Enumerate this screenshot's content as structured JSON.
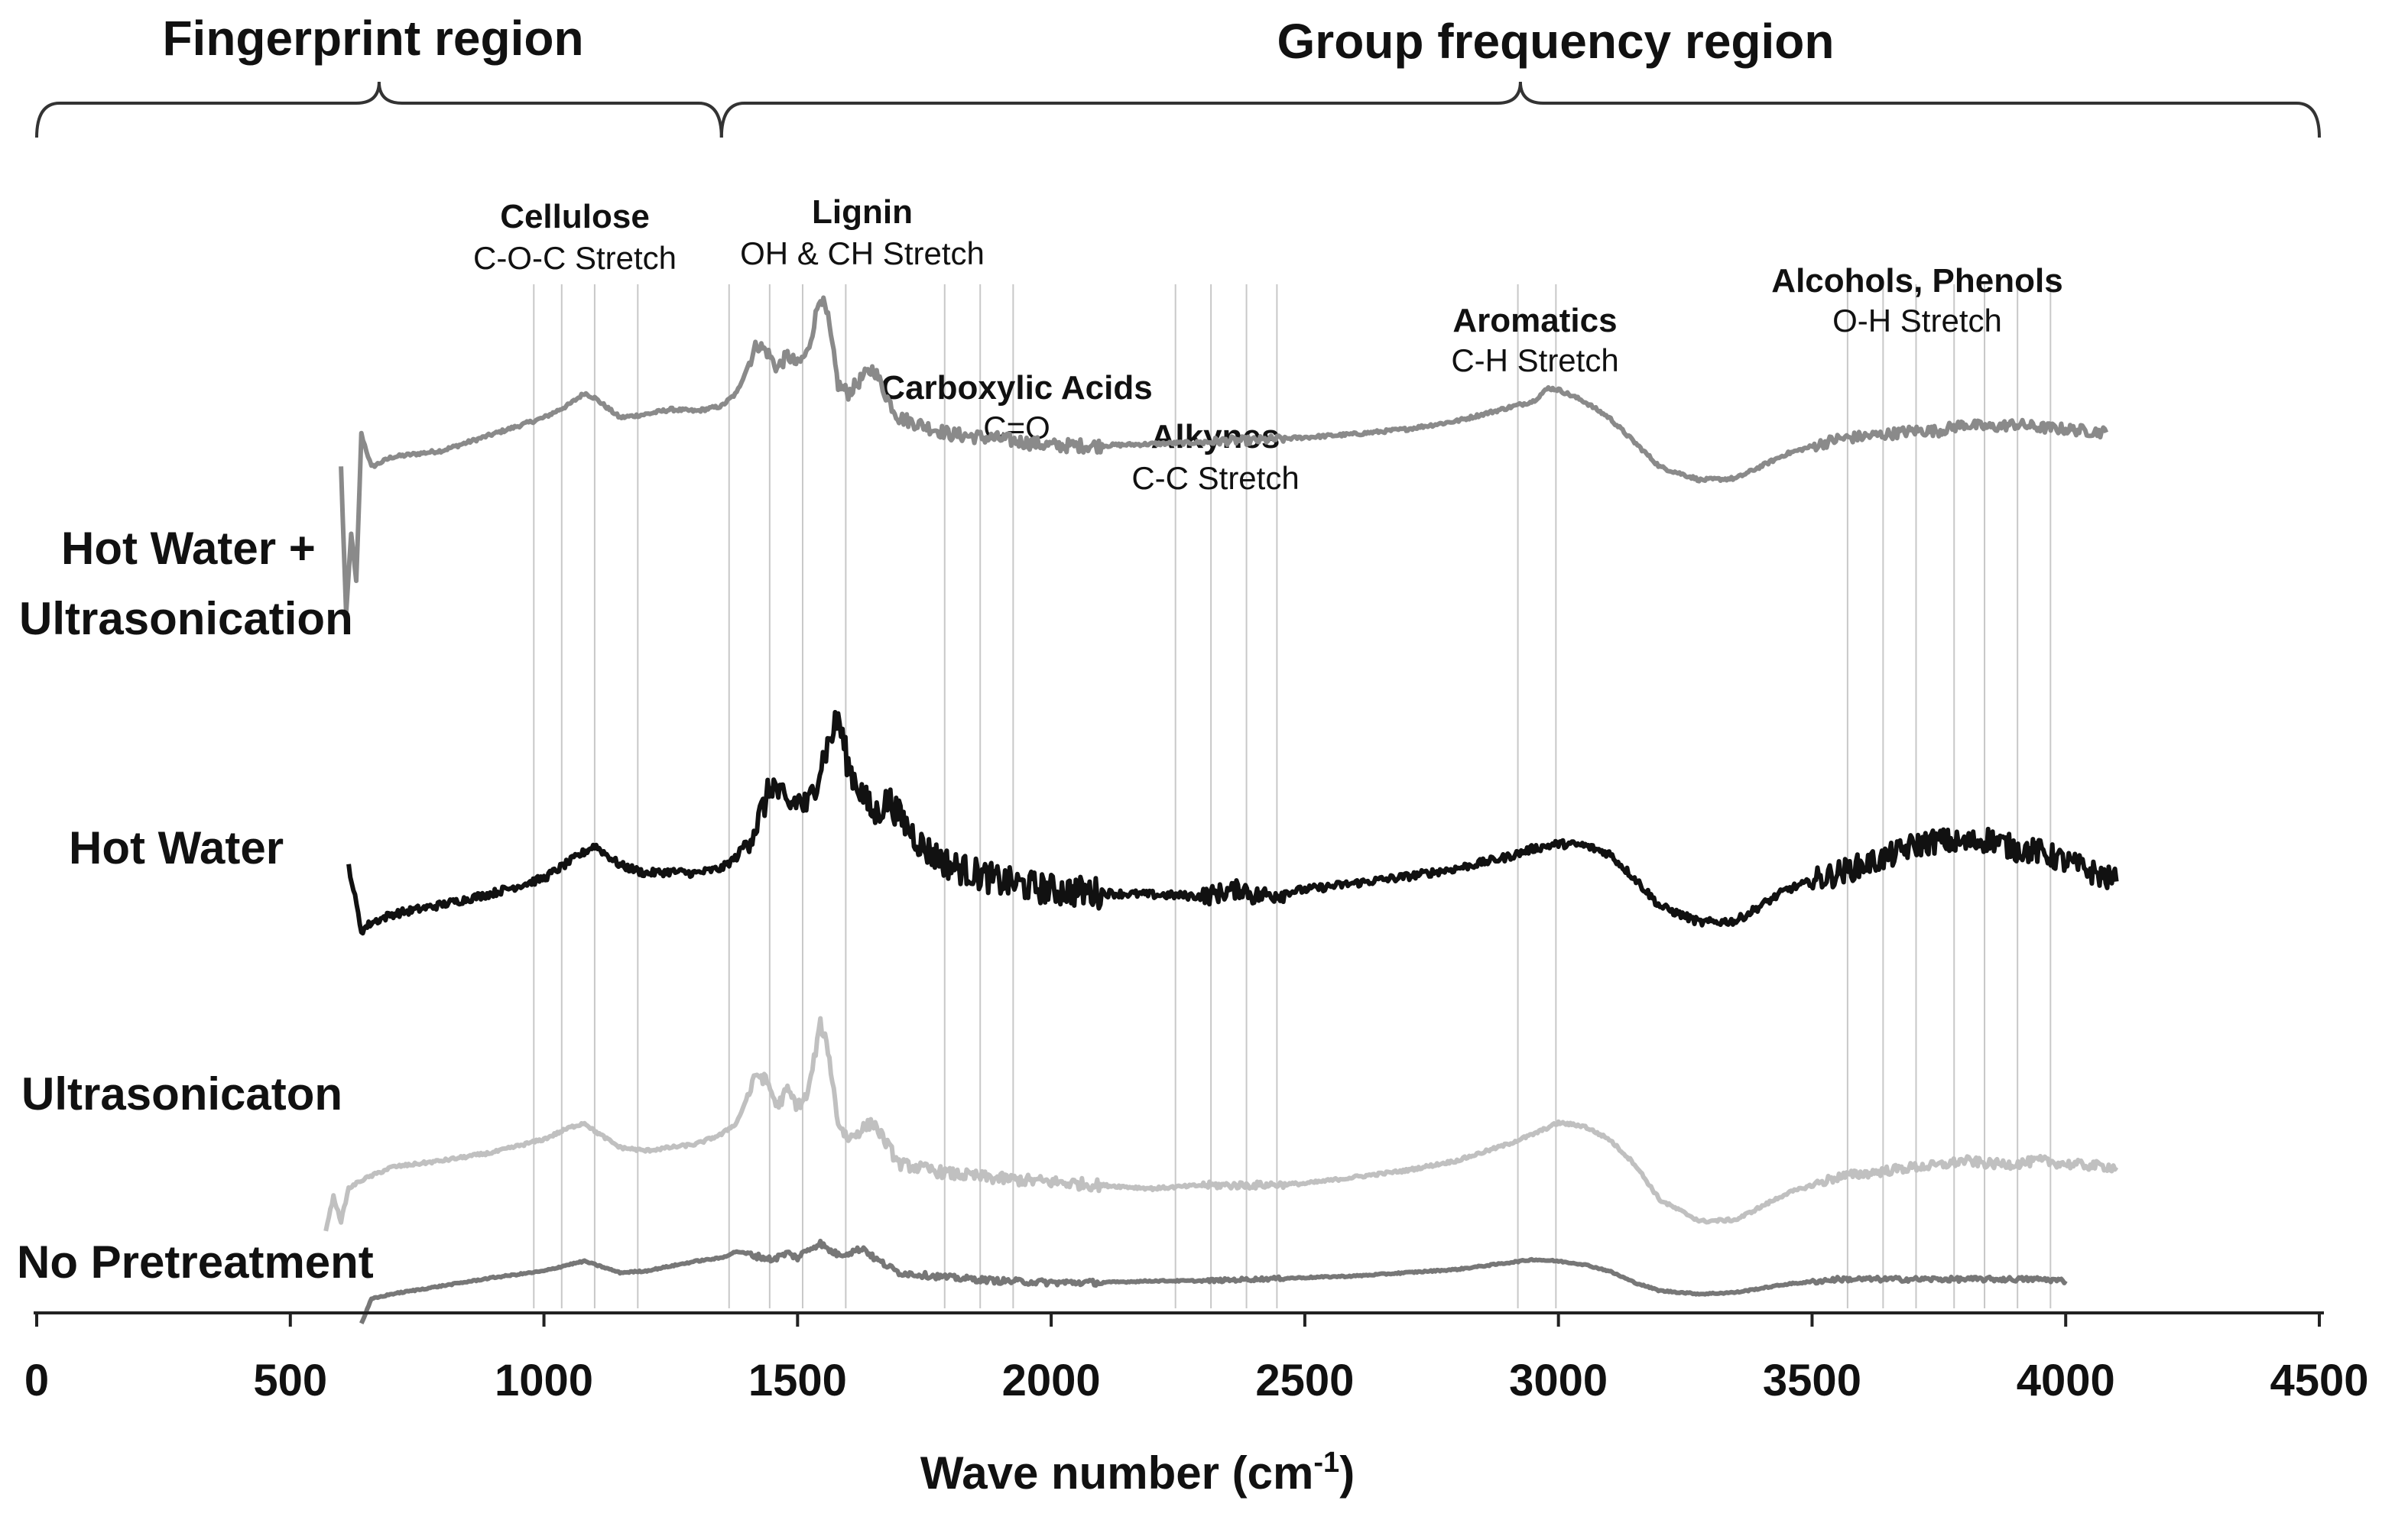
{
  "chart_data": {
    "type": "line",
    "title": "",
    "xlabel": "Wave number (cm-1)",
    "xlabel_base": "Wave number (cm",
    "xlabel_sup": "-1",
    "xlabel_close": ")",
    "xlim": [
      0,
      4500
    ],
    "xticks": [
      "0",
      "500",
      "1000",
      "1500",
      "2000",
      "2500",
      "3000",
      "3500",
      "4000",
      "4500"
    ],
    "regions": [
      {
        "label": "Fingerprint region",
        "range": [
          0,
          1350
        ]
      },
      {
        "label": "Group frequency region",
        "range": [
          1350,
          4500
        ]
      }
    ],
    "annotations": [
      {
        "title": "Cellulose",
        "subtitle": "C-O-C Stretch",
        "lines": [
          980,
          1035,
          1100,
          1185
        ]
      },
      {
        "title": "Lignin",
        "subtitle": "OH & CH Stretch",
        "lines": [
          1365,
          1445,
          1510,
          1595
        ]
      },
      {
        "title": "Carboxylic Acids",
        "subtitle": "",
        "lines": []
      },
      {
        "title": "",
        "subtitle": "C=O",
        "lines": [
          1790,
          1860,
          1925
        ]
      },
      {
        "title": "Alkynes",
        "subtitle": "C-C Stretch",
        "lines": [
          2245,
          2315,
          2385,
          2445
        ]
      },
      {
        "title": "Aromatics",
        "subtitle": "C-H Stretch",
        "lines": [
          2920,
          2995
        ]
      },
      {
        "title": "Alcohols, Phenols",
        "subtitle": "O-H Stretch",
        "lines": [
          3570,
          3640,
          3705,
          3780,
          3840,
          3905,
          3970
        ]
      }
    ],
    "series": [
      {
        "name": "Hot Water + Ultrasonication",
        "label_line1": "Hot Water +",
        "label_line2": "Ultrasonication",
        "color": "#8a8a8a",
        "noise": 0.7,
        "points": [
          [
            600,
            0.6
          ],
          [
            610,
            -0.3
          ],
          [
            620,
            0.2
          ],
          [
            630,
            -0.1
          ],
          [
            640,
            0.8
          ],
          [
            650,
            0.7
          ],
          [
            660,
            0.6
          ],
          [
            700,
            0.66
          ],
          [
            800,
            0.7
          ],
          [
            900,
            0.8
          ],
          [
            1000,
            0.9
          ],
          [
            1050,
            0.98
          ],
          [
            1080,
            1.05
          ],
          [
            1100,
            1.02
          ],
          [
            1150,
            0.9
          ],
          [
            1200,
            0.92
          ],
          [
            1250,
            0.95
          ],
          [
            1300,
            0.94
          ],
          [
            1350,
            0.97
          ],
          [
            1380,
            1.05
          ],
          [
            1420,
            1.35
          ],
          [
            1440,
            1.3
          ],
          [
            1460,
            1.2
          ],
          [
            1480,
            1.28
          ],
          [
            1500,
            1.22
          ],
          [
            1520,
            1.3
          ],
          [
            1545,
            1.65
          ],
          [
            1560,
            1.5
          ],
          [
            1580,
            1.1
          ],
          [
            1600,
            1.05
          ],
          [
            1630,
            1.15
          ],
          [
            1650,
            1.2
          ],
          [
            1680,
            1.0
          ],
          [
            1700,
            0.9
          ],
          [
            1800,
            0.8
          ],
          [
            1900,
            0.77
          ],
          [
            2000,
            0.73
          ],
          [
            2100,
            0.73
          ],
          [
            2200,
            0.74
          ],
          [
            2300,
            0.75
          ],
          [
            2350,
            0.76
          ],
          [
            2400,
            0.76
          ],
          [
            2500,
            0.78
          ],
          [
            2600,
            0.8
          ],
          [
            2700,
            0.83
          ],
          [
            2800,
            0.88
          ],
          [
            2900,
            0.96
          ],
          [
            2950,
            1.0
          ],
          [
            2980,
            1.08
          ],
          [
            3000,
            1.07
          ],
          [
            3050,
            1.0
          ],
          [
            3100,
            0.9
          ],
          [
            3150,
            0.75
          ],
          [
            3200,
            0.6
          ],
          [
            3280,
            0.52
          ],
          [
            3350,
            0.53
          ],
          [
            3450,
            0.68
          ],
          [
            3550,
            0.77
          ],
          [
            3650,
            0.8
          ],
          [
            3700,
            0.82
          ],
          [
            3750,
            0.82
          ],
          [
            3800,
            0.86
          ],
          [
            3850,
            0.84
          ],
          [
            3900,
            0.86
          ],
          [
            3950,
            0.84
          ],
          [
            4000,
            0.83
          ],
          [
            4080,
            0.81
          ]
        ]
      },
      {
        "name": "Hot Water",
        "label_line1": "Hot Water",
        "label_line2": "",
        "color": "#111111",
        "noise": 1.6,
        "points": [
          [
            615,
            0.2
          ],
          [
            640,
            -0.2
          ],
          [
            660,
            -0.15
          ],
          [
            700,
            -0.1
          ],
          [
            800,
            -0.04
          ],
          [
            900,
            0.03
          ],
          [
            1000,
            0.12
          ],
          [
            1050,
            0.22
          ],
          [
            1100,
            0.32
          ],
          [
            1150,
            0.2
          ],
          [
            1200,
            0.15
          ],
          [
            1250,
            0.16
          ],
          [
            1300,
            0.15
          ],
          [
            1350,
            0.18
          ],
          [
            1380,
            0.25
          ],
          [
            1420,
            0.45
          ],
          [
            1450,
            0.7
          ],
          [
            1480,
            0.55
          ],
          [
            1500,
            0.6
          ],
          [
            1520,
            0.55
          ],
          [
            1550,
            0.85
          ],
          [
            1580,
            1.1
          ],
          [
            1600,
            0.8
          ],
          [
            1650,
            0.5
          ],
          [
            1680,
            0.6
          ],
          [
            1700,
            0.5
          ],
          [
            1750,
            0.3
          ],
          [
            1800,
            0.2
          ],
          [
            1900,
            0.1
          ],
          [
            2000,
            0.05
          ],
          [
            2100,
            0.03
          ],
          [
            2200,
            0.02
          ],
          [
            2300,
            0.01
          ],
          [
            2380,
            0.06
          ],
          [
            2400,
            0.01
          ],
          [
            2500,
            0.05
          ],
          [
            2600,
            0.09
          ],
          [
            2700,
            0.13
          ],
          [
            2800,
            0.18
          ],
          [
            2900,
            0.25
          ],
          [
            2950,
            0.3
          ],
          [
            3000,
            0.33
          ],
          [
            3050,
            0.32
          ],
          [
            3100,
            0.27
          ],
          [
            3150,
            0.12
          ],
          [
            3200,
            -0.05
          ],
          [
            3280,
            -0.15
          ],
          [
            3350,
            -0.14
          ],
          [
            3450,
            0.05
          ],
          [
            3550,
            0.15
          ],
          [
            3650,
            0.25
          ],
          [
            3700,
            0.32
          ],
          [
            3750,
            0.35
          ],
          [
            3800,
            0.33
          ],
          [
            3850,
            0.36
          ],
          [
            3900,
            0.3
          ],
          [
            3950,
            0.28
          ],
          [
            4000,
            0.22
          ],
          [
            4100,
            0.1
          ]
        ]
      },
      {
        "name": "Ultrasonicaton",
        "label_line1": "Ultrasonicaton",
        "label_line2": "",
        "color": "#c0c0c0",
        "noise": 0.6,
        "points": [
          [
            570,
            -0.6
          ],
          [
            585,
            -0.4
          ],
          [
            600,
            -0.55
          ],
          [
            615,
            -0.35
          ],
          [
            640,
            -0.3
          ],
          [
            700,
            -0.22
          ],
          [
            800,
            -0.18
          ],
          [
            900,
            -0.13
          ],
          [
            1000,
            -0.05
          ],
          [
            1050,
            0.02
          ],
          [
            1080,
            0.05
          ],
          [
            1100,
            0.0
          ],
          [
            1150,
            -0.1
          ],
          [
            1200,
            -0.12
          ],
          [
            1250,
            -0.1
          ],
          [
            1300,
            -0.08
          ],
          [
            1350,
            -0.02
          ],
          [
            1380,
            0.05
          ],
          [
            1420,
            0.35
          ],
          [
            1440,
            0.3
          ],
          [
            1460,
            0.15
          ],
          [
            1480,
            0.25
          ],
          [
            1500,
            0.15
          ],
          [
            1520,
            0.22
          ],
          [
            1545,
            0.65
          ],
          [
            1560,
            0.5
          ],
          [
            1580,
            0.05
          ],
          [
            1600,
            -0.05
          ],
          [
            1630,
            0.02
          ],
          [
            1650,
            0.05
          ],
          [
            1680,
            -0.1
          ],
          [
            1700,
            -0.2
          ],
          [
            1800,
            -0.26
          ],
          [
            1900,
            -0.29
          ],
          [
            2000,
            -0.31
          ],
          [
            2100,
            -0.33
          ],
          [
            2200,
            -0.35
          ],
          [
            2300,
            -0.33
          ],
          [
            2400,
            -0.33
          ],
          [
            2500,
            -0.32
          ],
          [
            2600,
            -0.28
          ],
          [
            2700,
            -0.24
          ],
          [
            2800,
            -0.18
          ],
          [
            2900,
            -0.08
          ],
          [
            2950,
            -0.02
          ],
          [
            3000,
            0.05
          ],
          [
            3050,
            0.03
          ],
          [
            3100,
            -0.05
          ],
          [
            3150,
            -0.2
          ],
          [
            3200,
            -0.42
          ],
          [
            3280,
            -0.55
          ],
          [
            3350,
            -0.54
          ],
          [
            3450,
            -0.38
          ],
          [
            3550,
            -0.28
          ],
          [
            3650,
            -0.24
          ],
          [
            3700,
            -0.22
          ],
          [
            3750,
            -0.21
          ],
          [
            3800,
            -0.18
          ],
          [
            3850,
            -0.2
          ],
          [
            3900,
            -0.2
          ],
          [
            3950,
            -0.18
          ],
          [
            4000,
            -0.2
          ],
          [
            4100,
            -0.22
          ]
        ]
      },
      {
        "name": "No Pretreatment",
        "label_line1": "No Pretreatment",
        "label_line2": "",
        "color": "#777777",
        "noise": 0.3,
        "points": [
          [
            640,
            -0.8
          ],
          [
            660,
            -0.65
          ],
          [
            700,
            -0.62
          ],
          [
            800,
            -0.57
          ],
          [
            900,
            -0.52
          ],
          [
            1000,
            -0.48
          ],
          [
            1050,
            -0.44
          ],
          [
            1080,
            -0.42
          ],
          [
            1100,
            -0.44
          ],
          [
            1150,
            -0.49
          ],
          [
            1200,
            -0.48
          ],
          [
            1250,
            -0.45
          ],
          [
            1300,
            -0.42
          ],
          [
            1350,
            -0.4
          ],
          [
            1380,
            -0.36
          ],
          [
            1420,
            -0.39
          ],
          [
            1450,
            -0.41
          ],
          [
            1480,
            -0.37
          ],
          [
            1500,
            -0.4
          ],
          [
            1520,
            -0.35
          ],
          [
            1545,
            -0.31
          ],
          [
            1560,
            -0.35
          ],
          [
            1580,
            -0.38
          ],
          [
            1600,
            -0.37
          ],
          [
            1630,
            -0.34
          ],
          [
            1650,
            -0.4
          ],
          [
            1700,
            -0.49
          ],
          [
            1800,
            -0.52
          ],
          [
            1900,
            -0.54
          ],
          [
            2000,
            -0.55
          ],
          [
            2100,
            -0.55
          ],
          [
            2200,
            -0.54
          ],
          [
            2300,
            -0.54
          ],
          [
            2400,
            -0.53
          ],
          [
            2500,
            -0.52
          ],
          [
            2600,
            -0.51
          ],
          [
            2700,
            -0.49
          ],
          [
            2800,
            -0.47
          ],
          [
            2900,
            -0.43
          ],
          [
            2950,
            -0.41
          ],
          [
            3000,
            -0.42
          ],
          [
            3050,
            -0.44
          ],
          [
            3100,
            -0.48
          ],
          [
            3150,
            -0.55
          ],
          [
            3200,
            -0.6
          ],
          [
            3280,
            -0.62
          ],
          [
            3350,
            -0.61
          ],
          [
            3450,
            -0.56
          ],
          [
            3550,
            -0.53
          ],
          [
            3650,
            -0.53
          ],
          [
            3750,
            -0.53
          ],
          [
            3850,
            -0.53
          ],
          [
            3950,
            -0.53
          ],
          [
            4000,
            -0.54
          ]
        ]
      }
    ]
  }
}
